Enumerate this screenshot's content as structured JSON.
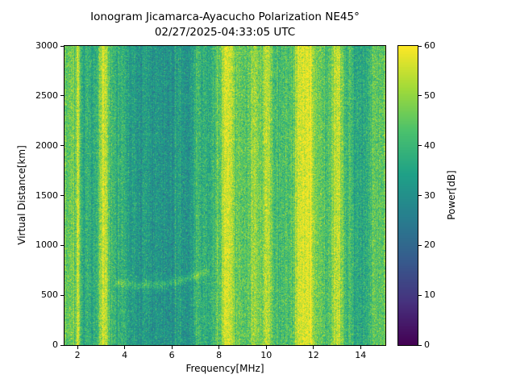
{
  "chart_data": {
    "type": "heatmap",
    "title": "Ionogram Jicamarca-Ayacucho Polarization NE45°",
    "subtitle": "02/27/2025-04:33:05 UTC",
    "xlabel": "Frequency[MHz]",
    "ylabel": "Virtual Distance[km]",
    "colorbar_label": "Power[dB]",
    "x_range": [
      1.45,
      15.05
    ],
    "y_range": [
      0,
      3000
    ],
    "value_range": [
      0,
      60
    ],
    "x_ticks": [
      2,
      4,
      6,
      8,
      10,
      12,
      14
    ],
    "y_ticks": [
      0,
      500,
      1000,
      1500,
      2000,
      2500,
      3000
    ],
    "colorbar_ticks": [
      0,
      10,
      20,
      30,
      40,
      50,
      60
    ],
    "grid": false,
    "legend": "colorbar-right",
    "colormap": {
      "name": "viridis",
      "stops": [
        "#440154",
        "#46327e",
        "#365c8d",
        "#277f8e",
        "#1fa187",
        "#4ac16d",
        "#a0da39",
        "#fde725"
      ]
    },
    "freq_power_profile": [
      [
        1.45,
        46
      ],
      [
        1.6,
        44
      ],
      [
        1.75,
        48
      ],
      [
        1.9,
        43
      ],
      [
        2.0,
        55
      ],
      [
        2.08,
        50
      ],
      [
        2.18,
        38
      ],
      [
        2.3,
        36
      ],
      [
        2.5,
        37
      ],
      [
        2.7,
        35
      ],
      [
        2.85,
        39
      ],
      [
        3.0,
        52
      ],
      [
        3.1,
        57
      ],
      [
        3.22,
        54
      ],
      [
        3.35,
        42
      ],
      [
        3.5,
        38
      ],
      [
        3.7,
        37
      ],
      [
        3.9,
        40
      ],
      [
        4.1,
        36
      ],
      [
        4.3,
        34
      ],
      [
        4.5,
        32
      ],
      [
        4.7,
        31
      ],
      [
        4.9,
        34
      ],
      [
        5.1,
        30
      ],
      [
        5.3,
        31
      ],
      [
        5.5,
        33
      ],
      [
        5.7,
        30
      ],
      [
        5.9,
        30
      ],
      [
        6.1,
        31
      ],
      [
        6.35,
        34
      ],
      [
        6.5,
        30
      ],
      [
        6.7,
        31
      ],
      [
        6.9,
        34
      ],
      [
        7.05,
        41
      ],
      [
        7.3,
        38
      ],
      [
        7.5,
        36
      ],
      [
        7.7,
        38
      ],
      [
        7.9,
        41
      ],
      [
        8.1,
        47
      ],
      [
        8.25,
        57
      ],
      [
        8.4,
        58
      ],
      [
        8.55,
        54
      ],
      [
        8.7,
        46
      ],
      [
        8.9,
        44
      ],
      [
        9.1,
        46
      ],
      [
        9.3,
        44
      ],
      [
        9.45,
        52
      ],
      [
        9.6,
        50
      ],
      [
        9.75,
        46
      ],
      [
        9.9,
        50
      ],
      [
        10.05,
        52
      ],
      [
        10.2,
        46
      ],
      [
        10.4,
        42
      ],
      [
        10.6,
        40
      ],
      [
        10.8,
        44
      ],
      [
        11.0,
        42
      ],
      [
        11.2,
        47
      ],
      [
        11.35,
        54
      ],
      [
        11.5,
        57
      ],
      [
        11.65,
        56
      ],
      [
        11.8,
        57
      ],
      [
        11.95,
        54
      ],
      [
        12.1,
        48
      ],
      [
        12.3,
        44
      ],
      [
        12.5,
        42
      ],
      [
        12.7,
        44
      ],
      [
        12.9,
        52
      ],
      [
        13.05,
        54
      ],
      [
        13.2,
        48
      ],
      [
        13.4,
        38
      ],
      [
        13.55,
        43
      ],
      [
        13.7,
        36
      ],
      [
        13.9,
        37
      ],
      [
        14.1,
        36
      ],
      [
        14.25,
        39
      ],
      [
        14.45,
        42
      ],
      [
        14.6,
        44
      ],
      [
        14.8,
        45
      ],
      [
        15.05,
        46
      ]
    ],
    "noise": {
      "pixel_std": 4.5,
      "column_jitter": 3,
      "spike_prob": 0.05,
      "spike_boost": 7,
      "seed": 42
    },
    "echo_trace": {
      "f_start": 3.6,
      "f_end": 7.6,
      "alt_km": [
        640,
        605,
        760
      ],
      "boost": 7,
      "width_km": 28
    }
  }
}
